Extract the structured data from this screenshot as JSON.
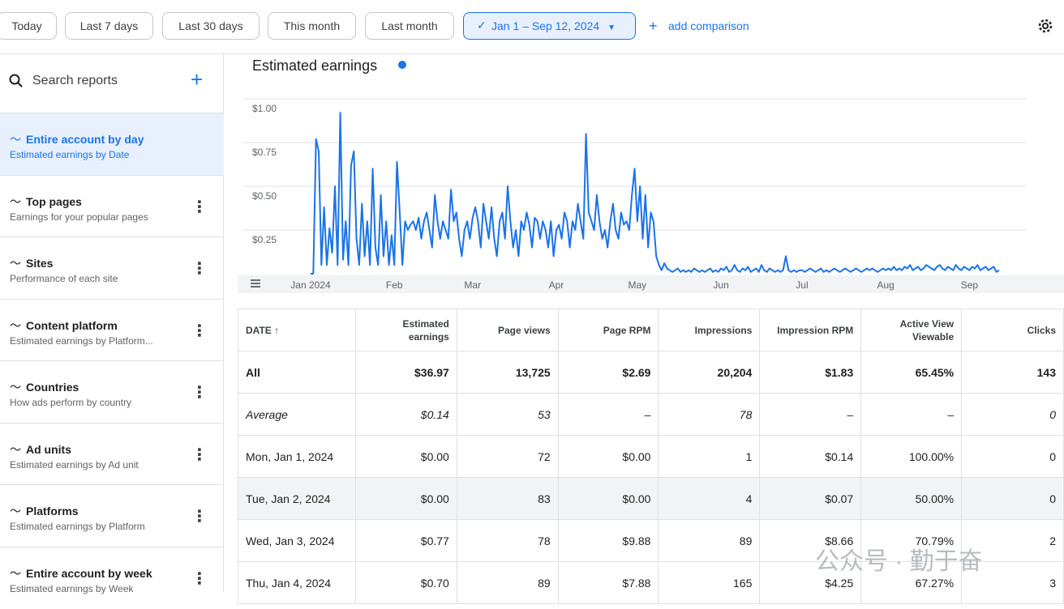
{
  "toolbar": {
    "buttons": [
      "Today",
      "Last 7 days",
      "Last 30 days",
      "This month",
      "Last month"
    ],
    "date_range": "Jan 1 – Sep 12, 2024",
    "add_comparison": "add comparison"
  },
  "sidebar": {
    "search": "Search reports",
    "reports": [
      {
        "title": "Entire account by day",
        "subtitle": "Estimated earnings by Date"
      },
      {
        "title": "Top pages",
        "subtitle": "Earnings for your popular pages"
      },
      {
        "title": "Sites",
        "subtitle": "Performance of each site"
      },
      {
        "title": "Content platform",
        "subtitle": "Estimated earnings by Platform..."
      },
      {
        "title": "Countries",
        "subtitle": "How ads perform by country"
      },
      {
        "title": "Ad units",
        "subtitle": "Estimated earnings by Ad unit"
      },
      {
        "title": "Platforms",
        "subtitle": "Estimated earnings by Platform"
      },
      {
        "title": "Entire account by week",
        "subtitle": "Estimated earnings by Week"
      }
    ]
  },
  "chart_data": {
    "type": "line",
    "title": "Estimated earnings",
    "color": "#1a73e8",
    "grid": true,
    "values": [
      0,
      0,
      0.77,
      0.7,
      0.05,
      0.38,
      0.05,
      0.26,
      0.12,
      0.5,
      0.05,
      0.92,
      0.08,
      0.3,
      0.05,
      0.62,
      0.7,
      0.2,
      0.05,
      0.4,
      0.1,
      0.3,
      0.05,
      0.6,
      0.15,
      0.05,
      0.45,
      0.1,
      0.3,
      0.05,
      0.22,
      0.05,
      0.64,
      0.35,
      0.05,
      0.3,
      0.25,
      0.28,
      0.3,
      0.25,
      0.32,
      0.2,
      0.3,
      0.35,
      0.25,
      0.15,
      0.45,
      0.3,
      0.2,
      0.3,
      0.25,
      0.2,
      0.48,
      0.3,
      0.35,
      0.2,
      0.1,
      0.25,
      0.3,
      0.2,
      0.32,
      0.38,
      0.3,
      0.15,
      0.4,
      0.3,
      0.2,
      0.38,
      0.2,
      0.1,
      0.3,
      0.35,
      0.2,
      0.5,
      0.3,
      0.15,
      0.25,
      0.1,
      0.3,
      0.25,
      0.35,
      0.28,
      0.15,
      0.32,
      0.3,
      0.2,
      0.3,
      0.25,
      0.15,
      0.3,
      0.1,
      0.25,
      0.28,
      0.2,
      0.35,
      0.3,
      0.15,
      0.3,
      0.25,
      0.4,
      0.3,
      0.2,
      0.8,
      0.35,
      0.3,
      0.25,
      0.45,
      0.3,
      0.2,
      0.25,
      0.15,
      0.3,
      0.4,
      0.25,
      0.2,
      0.35,
      0.28,
      0.3,
      0.25,
      0.45,
      0.6,
      0.3,
      0.5,
      0.2,
      0.45,
      0.15,
      0.35,
      0.3,
      0.1,
      0.05,
      0.02,
      0.06,
      0.03,
      0.02,
      0.01,
      0.02,
      0.03,
      0.01,
      0.02,
      0.01,
      0.02,
      0.01,
      0.03,
      0.02,
      0.01,
      0.02,
      0.01,
      0.02,
      0.03,
      0.01,
      0.02,
      0.01,
      0.03,
      0.02,
      0.04,
      0.01,
      0.02,
      0.05,
      0.02,
      0.01,
      0.03,
      0.02,
      0.04,
      0.01,
      0.02,
      0.03,
      0.01,
      0.05,
      0.02,
      0.01,
      0.03,
      0.02,
      0.01,
      0.02,
      0.01,
      0.02,
      0.1,
      0.02,
      0.01,
      0.02,
      0.01,
      0.02,
      0.02,
      0.01,
      0.02,
      0.03,
      0.02,
      0.01,
      0.02,
      0.03,
      0.01,
      0.02,
      0.01,
      0.02,
      0.03,
      0.02,
      0.01,
      0.02,
      0.03,
      0.02,
      0.01,
      0.02,
      0.03,
      0.02,
      0.01,
      0.02,
      0.03,
      0.02,
      0.03,
      0.02,
      0.01,
      0.02,
      0.03,
      0.02,
      0.03,
      0.02,
      0.04,
      0.02,
      0.03,
      0.02,
      0.04,
      0.03,
      0.05,
      0.02,
      0.03,
      0.04,
      0.02,
      0.03,
      0.05,
      0.04,
      0.03,
      0.02,
      0.04,
      0.05,
      0.03,
      0.02,
      0.04,
      0.03,
      0.02,
      0.05,
      0.03,
      0.02,
      0.04,
      0.03,
      0.02,
      0.04,
      0.03,
      0.05,
      0.02,
      0.03,
      0.04,
      0.02,
      0.03,
      0.04,
      0.01,
      0.02
    ],
    "xlim": [
      0,
      255
    ],
    "xticks": [
      {
        "value": 0,
        "label": "Jan 2024"
      },
      {
        "value": 31,
        "label": "Feb"
      },
      {
        "value": 60,
        "label": "Mar"
      },
      {
        "value": 91,
        "label": "Apr"
      },
      {
        "value": 121,
        "label": "May"
      },
      {
        "value": 152,
        "label": "Jun"
      },
      {
        "value": 182,
        "label": "Jul"
      },
      {
        "value": 213,
        "label": "Aug"
      },
      {
        "value": 244,
        "label": "Sep"
      }
    ],
    "ylim": [
      0,
      1
    ],
    "yticks": [
      {
        "value": 0.25,
        "label": "$0.25"
      },
      {
        "value": 0.5,
        "label": "$0.50"
      },
      {
        "value": 0.75,
        "label": "$0.75"
      },
      {
        "value": 1,
        "label": "$1.00"
      }
    ]
  },
  "table": {
    "headers": [
      "DATE ↑",
      "Estimated earnings",
      "Page views",
      "Page RPM",
      "Impressions",
      "Impression RPM",
      "Active View Viewable",
      "Clicks"
    ],
    "rows": [
      [
        "All",
        "$36.97",
        "13,725",
        "$2.69",
        "20,204",
        "$1.83",
        "65.45%",
        "143"
      ],
      [
        "Average",
        "$0.14",
        "53",
        "–",
        "78",
        "–",
        "–",
        "0"
      ],
      [
        "Mon, Jan 1, 2024",
        "$0.00",
        "72",
        "$0.00",
        "1",
        "$0.14",
        "100.00%",
        "0"
      ],
      [
        "Tue, Jan 2, 2024",
        "$0.00",
        "83",
        "$0.00",
        "4",
        "$0.07",
        "50.00%",
        "0"
      ],
      [
        "Wed, Jan 3, 2024",
        "$0.77",
        "78",
        "$9.88",
        "89",
        "$8.66",
        "70.79%",
        "2"
      ],
      [
        "Thu, Jan 4, 2024",
        "$0.70",
        "89",
        "$7.88",
        "165",
        "$4.25",
        "67.27%",
        "3"
      ]
    ]
  },
  "watermark": "公众号 · 勤于奋"
}
